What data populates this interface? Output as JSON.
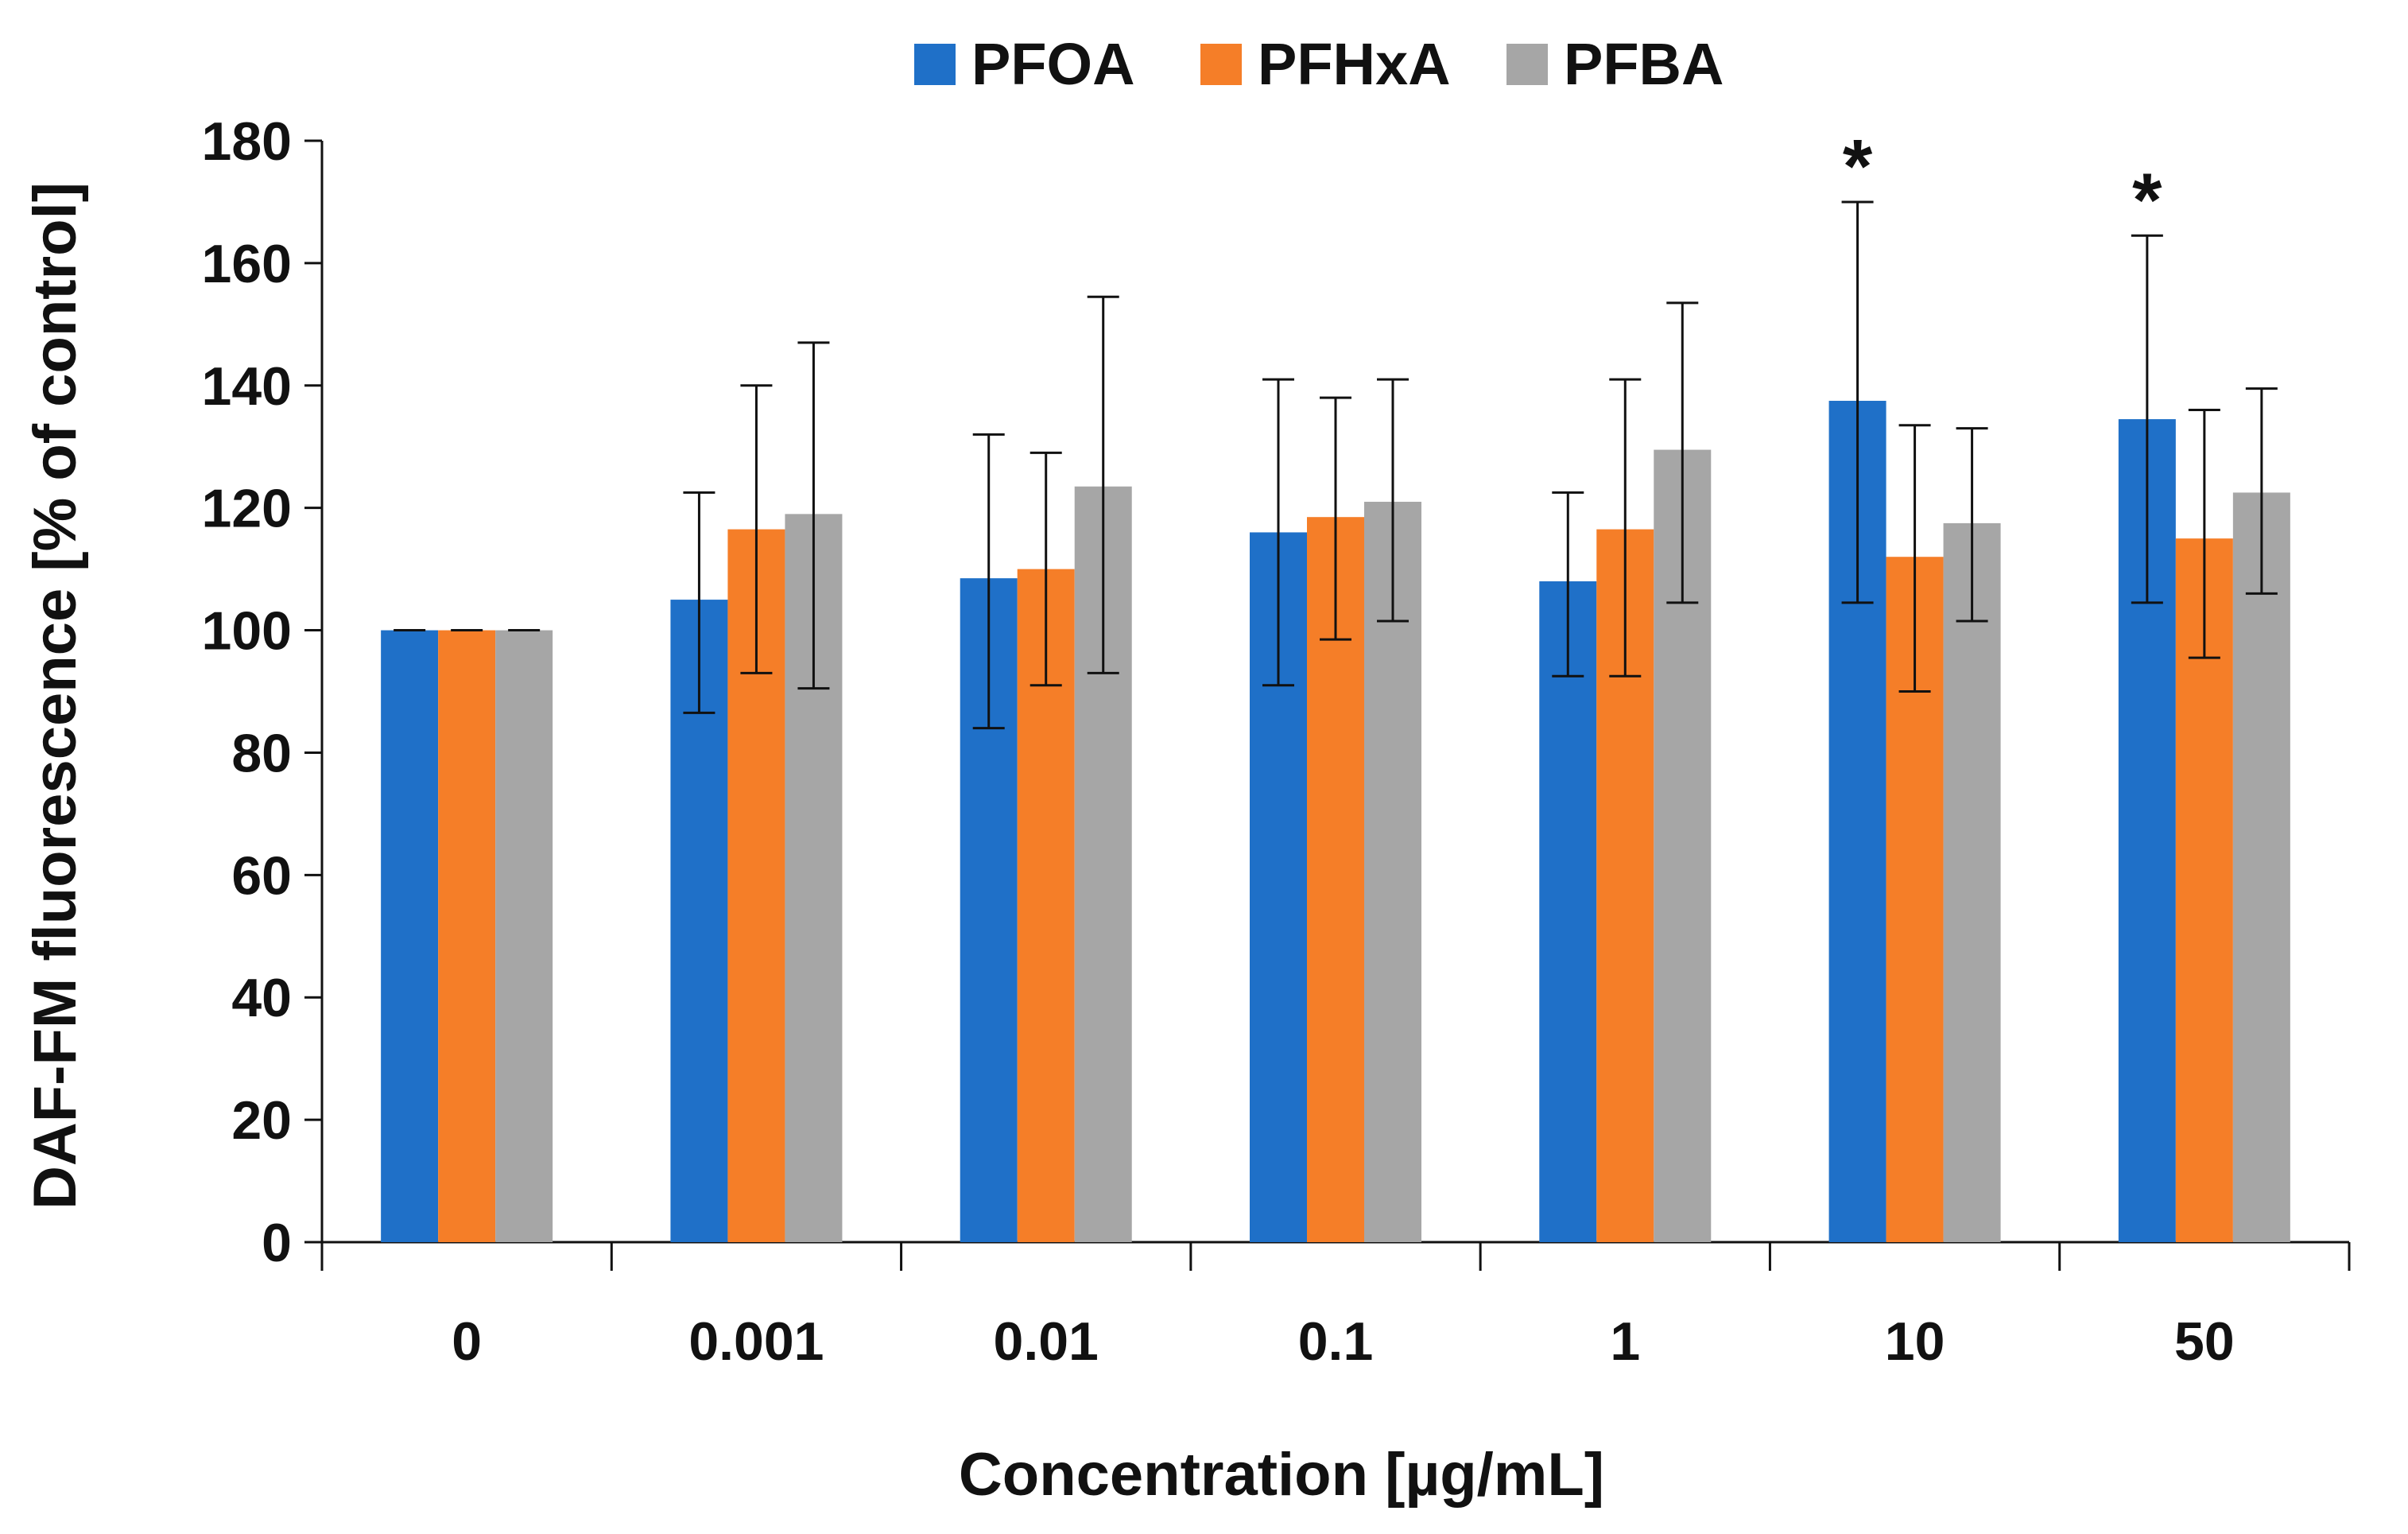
{
  "chart_data": {
    "type": "bar",
    "title": "",
    "xlabel": "Concentration [µg/mL]",
    "ylabel": "DAF-FM fluorescence [% of control]",
    "ylim": [
      0,
      180
    ],
    "yticks": [
      0,
      20,
      40,
      60,
      80,
      100,
      120,
      140,
      160,
      180
    ],
    "legend_position": "top",
    "categories": [
      "0",
      "0.001",
      "0.01",
      "0.1",
      "1",
      "10",
      "50"
    ],
    "series": [
      {
        "name": "PFOA",
        "color": "#1f70c8",
        "values": [
          100,
          105,
          108.5,
          116,
          108,
          137.5,
          134.5
        ],
        "err_upper": [
          100,
          122.5,
          132,
          141,
          122.5,
          170,
          164.5
        ],
        "err_lower": [
          100,
          86.5,
          84,
          91,
          92.5,
          104.5,
          104.5
        ]
      },
      {
        "name": "PFHxA",
        "color": "#f57e28",
        "values": [
          100,
          116.5,
          110,
          118.5,
          116.5,
          112,
          115
        ],
        "err_upper": [
          100,
          140,
          129,
          138,
          141,
          133.5,
          136
        ],
        "err_lower": [
          100,
          93,
          91,
          98.5,
          92.5,
          90,
          95.5
        ]
      },
      {
        "name": "PFBA",
        "color": "#a6a6a6",
        "values": [
          100,
          119,
          123.5,
          121,
          129.5,
          117.5,
          122.5
        ],
        "err_upper": [
          100,
          147,
          154.5,
          141,
          153.5,
          133,
          139.5
        ],
        "err_lower": [
          100,
          90.5,
          93,
          101.5,
          104.5,
          101.5,
          106
        ]
      }
    ],
    "annotations": [
      {
        "category": "10",
        "series": "PFOA",
        "text": "*"
      },
      {
        "category": "50",
        "series": "PFOA",
        "text": "*"
      }
    ]
  }
}
